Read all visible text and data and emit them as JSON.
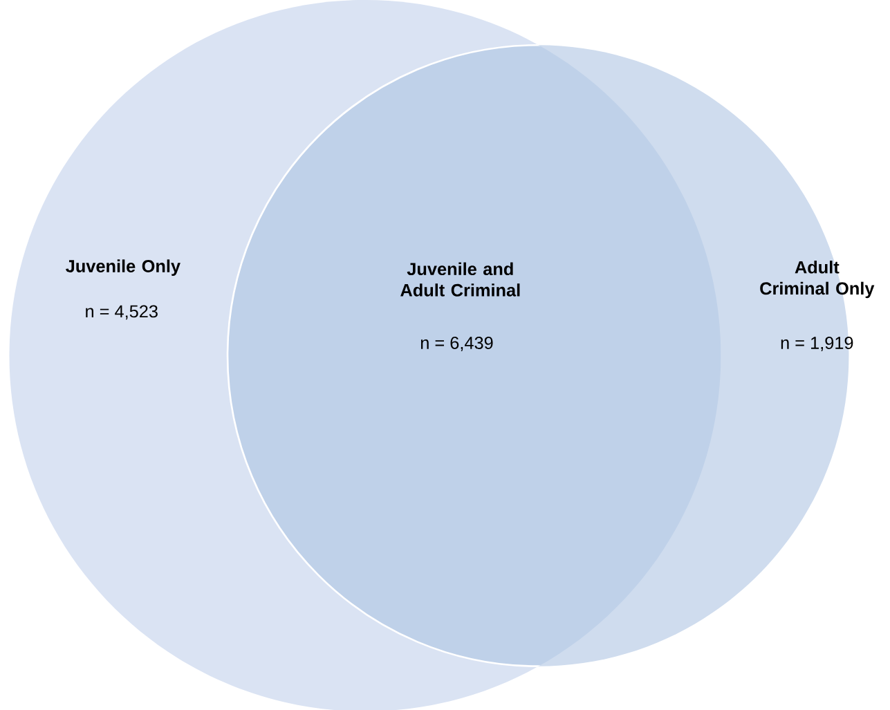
{
  "chart_data": {
    "type": "other",
    "categories": [
      "Juvenile Only",
      "Juvenile and Adult Criminal",
      "Adult Criminal Only"
    ],
    "values": [
      4523,
      6439,
      1919
    ],
    "value_labels": [
      "n = 4,523",
      "n = 6,439",
      "n = 1,919"
    ],
    "colors": [
      "#dae3f3",
      "#bfd1e9",
      "#cfdcee"
    ]
  }
}
